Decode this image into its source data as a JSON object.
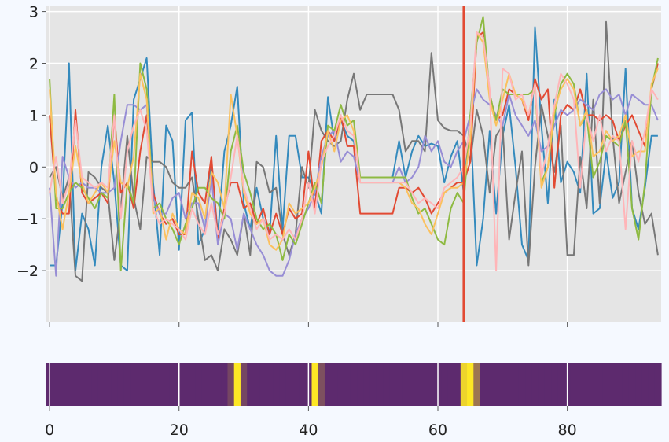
{
  "chart_data": [
    {
      "type": "line",
      "title": "",
      "xlabel": "",
      "ylabel": "",
      "xlim": [
        -0.5,
        94.5
      ],
      "ylim": [
        -3,
        3.1
      ],
      "xticks": [
        0,
        20,
        40,
        60,
        80
      ],
      "yticks": [
        3,
        2,
        1,
        0,
        -1,
        -2
      ],
      "ytick_labels": [
        "3",
        "2",
        "1",
        "0",
        "−1",
        "−2"
      ],
      "grid": true,
      "background": "#e5e5e5",
      "vline": {
        "x": 64,
        "color": "#e24a33"
      },
      "series": [
        {
          "color": "#348abd",
          "values": [
            -1.9,
            -1.9,
            -0.7,
            2.0,
            -2.0,
            -0.9,
            -1.2,
            -1.9,
            0.0,
            0.8,
            -0.3,
            -1.9,
            -2.0,
            1.3,
            1.7,
            2.1,
            -0.3,
            -1.7,
            0.8,
            0.5,
            -1.6,
            0.9,
            1.05,
            -1.5,
            -1.2,
            0.1,
            -1.3,
            0.3,
            0.8,
            1.55,
            -0.7,
            -1.2,
            -0.4,
            -1.0,
            -1.3,
            0.6,
            -1.2,
            0.6,
            0.6,
            -0.2,
            -0.2,
            -0.5,
            -0.9,
            1.35,
            0.5,
            0.9,
            0.6,
            0.5,
            -0.2,
            -0.2,
            -0.2,
            -0.2,
            -0.2,
            -0.2,
            0.5,
            -0.2,
            0.3,
            0.6,
            0.4,
            0.45,
            0.4,
            -0.3,
            0.2,
            0.5,
            -0.5,
            1.0,
            -1.9,
            -1.0,
            0.7,
            -0.9,
            0.6,
            1.2,
            0.0,
            -1.5,
            -1.8,
            2.7,
            0.8,
            -0.7,
            1.3,
            -0.3,
            0.1,
            -0.1,
            -0.5,
            1.8,
            -0.9,
            -0.8,
            0.3,
            -0.6,
            -0.3,
            1.9,
            -0.8,
            -1.2,
            -0.4,
            0.6,
            0.6
          ]
        },
        {
          "color": "#777777",
          "values": [
            -0.2,
            0.0,
            -0.6,
            -0.2,
            -2.1,
            -2.2,
            -0.1,
            -0.2,
            -0.4,
            -0.5,
            -1.8,
            -0.8,
            0.6,
            -0.6,
            -1.2,
            0.2,
            0.1,
            0.1,
            0.0,
            -0.3,
            -0.4,
            -0.4,
            -0.2,
            -1.0,
            -1.8,
            -1.7,
            -2.0,
            -1.2,
            -1.4,
            -1.7,
            -0.9,
            -1.7,
            0.1,
            0.0,
            -0.5,
            -0.4,
            -1.3,
            -1.7,
            -1.3,
            0.0,
            -0.4,
            1.1,
            0.7,
            0.5,
            0.4,
            0.5,
            1.3,
            1.8,
            1.1,
            1.4,
            1.4,
            1.4,
            1.4,
            1.4,
            1.1,
            0.3,
            0.5,
            0.5,
            0.3,
            2.2,
            0.9,
            0.75,
            0.7,
            0.7,
            0.6,
            0.1,
            1.1,
            0.6,
            -0.5,
            0.6,
            0.8,
            -1.4,
            -0.5,
            0.3,
            -1.9,
            0.0,
            1.2,
            0.6,
            -0.1,
            0.8,
            -1.7,
            -1.7,
            0.2,
            -0.8,
            1.3,
            -0.7,
            2.8,
            0.6,
            -0.7,
            -0.1,
            0.5,
            -0.5,
            -1.1,
            -0.9,
            -1.7
          ]
        },
        {
          "color": "#e24a33",
          "values": [
            1.0,
            -0.6,
            -0.9,
            -0.9,
            1.1,
            -0.5,
            -0.7,
            -0.6,
            -0.5,
            -0.7,
            1.0,
            -0.5,
            -0.3,
            -0.8,
            0.3,
            1.0,
            -0.5,
            -0.9,
            -1.1,
            -1.0,
            -1.3,
            -1.3,
            0.3,
            -0.5,
            -0.7,
            0.2,
            -1.4,
            -0.8,
            -0.3,
            -0.3,
            -0.8,
            -0.7,
            -1.1,
            -0.8,
            -1.3,
            -0.9,
            -1.3,
            -0.8,
            -1.0,
            -0.9,
            0.3,
            -0.8,
            0.5,
            0.7,
            0.5,
            1.0,
            0.4,
            0.4,
            -0.9,
            -0.9,
            -0.9,
            -0.9,
            -0.9,
            -0.9,
            -0.4,
            -0.4,
            -0.5,
            -0.4,
            -0.6,
            -0.9,
            -0.7,
            -0.5,
            -0.4,
            -0.3,
            -0.3,
            0.1,
            2.5,
            2.6,
            1.4,
            0.9,
            1.0,
            1.5,
            1.4,
            1.3,
            0.9,
            1.7,
            1.3,
            1.5,
            -0.4,
            1.0,
            1.2,
            1.1,
            1.5,
            1.0,
            1.0,
            0.9,
            1.0,
            0.9,
            0.5,
            0.8,
            1.0,
            0.7,
            0.4,
            1.5,
            2.0
          ]
        },
        {
          "color": "#988ed5",
          "values": [
            -0.4,
            -2.1,
            0.2,
            -0.2,
            -0.4,
            -0.3,
            -0.4,
            -0.4,
            -0.5,
            -0.5,
            -0.4,
            0.5,
            1.2,
            1.2,
            1.1,
            1.2,
            -0.6,
            -0.9,
            -0.9,
            -0.6,
            -0.5,
            -1.0,
            -0.7,
            -0.7,
            -1.2,
            -0.2,
            -1.5,
            -0.9,
            -1.0,
            -1.6,
            -0.9,
            -1.2,
            -1.5,
            -1.7,
            -2.0,
            -2.1,
            -2.1,
            -1.8,
            -1.3,
            -1.0,
            -0.8,
            -0.5,
            0.2,
            0.6,
            0.7,
            0.1,
            0.3,
            0.2,
            -0.3,
            -0.3,
            -0.3,
            -0.3,
            -0.3,
            -0.3,
            0.0,
            -0.3,
            -0.2,
            0.0,
            0.6,
            0.3,
            0.5,
            0.1,
            0.0,
            0.3,
            0.5,
            1.0,
            1.5,
            1.3,
            1.2,
            1.0,
            0.8,
            1.4,
            1.0,
            0.8,
            0.6,
            0.9,
            0.3,
            0.4,
            0.8,
            1.1,
            1.0,
            1.1,
            1.3,
            1.2,
            1.1,
            1.4,
            1.5,
            1.3,
            1.4,
            1.0,
            1.4,
            1.3,
            1.2,
            1.2,
            0.9
          ]
        },
        {
          "color": "#8eba42",
          "values": [
            1.7,
            -0.8,
            -0.8,
            -0.5,
            -0.3,
            -0.4,
            -0.6,
            -0.8,
            -0.5,
            -0.6,
            1.4,
            -2.0,
            -0.3,
            -0.7,
            2.0,
            1.5,
            -0.8,
            -0.7,
            -1.0,
            -1.2,
            -1.5,
            -1.1,
            -0.8,
            -0.4,
            -0.4,
            -0.6,
            -0.7,
            -1.0,
            0.3,
            0.8,
            -0.1,
            -0.5,
            -1.0,
            -1.2,
            -1.1,
            -1.3,
            -1.8,
            -1.3,
            -1.5,
            -1.1,
            -0.7,
            -0.3,
            -0.7,
            0.8,
            0.7,
            1.2,
            0.8,
            0.9,
            -0.2,
            -0.2,
            -0.2,
            -0.2,
            -0.2,
            -0.2,
            -0.2,
            -0.2,
            -0.6,
            -0.9,
            -0.8,
            -1.1,
            -1.4,
            -1.5,
            -0.8,
            -0.5,
            -0.7,
            1.0,
            2.4,
            2.9,
            1.4,
            0.9,
            1.5,
            1.4,
            1.4,
            1.4,
            1.4,
            1.5,
            -0.3,
            0.0,
            1.0,
            1.6,
            1.8,
            1.6,
            0.8,
            1.0,
            -0.2,
            0.1,
            0.6,
            0.5,
            0.4,
            0.9,
            -0.8,
            -1.4,
            -0.3,
            1.5,
            2.1
          ]
        },
        {
          "color": "#fbc15e",
          "values": [
            1.5,
            -0.5,
            -1.2,
            -0.5,
            0.4,
            -0.3,
            -0.7,
            -0.5,
            -0.3,
            -0.5,
            0.5,
            -0.3,
            -0.4,
            0.2,
            1.8,
            1.3,
            -0.9,
            -0.8,
            -1.4,
            -0.9,
            -1.2,
            -1.3,
            -0.5,
            -0.6,
            -1.0,
            -0.1,
            -0.3,
            -0.8,
            1.4,
            0.6,
            -0.5,
            -0.9,
            -1.1,
            -1.0,
            -1.5,
            -1.6,
            -1.4,
            -0.7,
            -0.9,
            -0.8,
            -0.7,
            -0.4,
            0.0,
            0.7,
            0.3,
            0.9,
            1.0,
            0.7,
            -0.3,
            -0.3,
            -0.3,
            -0.3,
            -0.3,
            -0.3,
            -0.3,
            -0.4,
            -0.7,
            -0.8,
            -1.1,
            -1.3,
            -0.9,
            -0.5,
            -0.4,
            -0.4,
            -0.3,
            0.5,
            2.6,
            2.4,
            1.3,
            0.8,
            1.3,
            1.8,
            1.4,
            1.3,
            1.0,
            1.6,
            -0.4,
            0.0,
            1.1,
            1.5,
            1.7,
            1.5,
            0.8,
            1.1,
            0.2,
            0.3,
            0.7,
            0.5,
            0.6,
            1.0,
            0.2,
            0.3,
            0.3,
            1.6,
            1.9
          ]
        },
        {
          "color": "#ffb5b8",
          "values": [
            -0.5,
            0.2,
            -0.7,
            -0.3,
            0.9,
            -0.2,
            -0.3,
            -0.4,
            -0.3,
            -0.4,
            1.0,
            -1.0,
            0.3,
            0.8,
            1.1,
            0.7,
            -0.8,
            -1.1,
            -1.0,
            -1.1,
            -1.2,
            -1.4,
            -0.8,
            -1.1,
            -1.3,
            -0.7,
            -1.3,
            -0.9,
            -0.2,
            0.6,
            -0.4,
            -0.8,
            -1.2,
            -1.0,
            -1.4,
            -1.3,
            -1.4,
            -1.2,
            -1.4,
            -1.0,
            -0.3,
            -0.9,
            0.1,
            0.4,
            0.6,
            1.0,
            0.7,
            0.6,
            -0.3,
            -0.3,
            -0.3,
            -0.3,
            -0.3,
            -0.3,
            -0.3,
            -0.3,
            -0.5,
            -0.7,
            -0.6,
            -0.7,
            -0.8,
            -0.4,
            -0.3,
            -0.2,
            0.0,
            0.8,
            2.6,
            2.5,
            1.5,
            -2.0,
            1.9,
            1.8,
            1.3,
            1.4,
            1.0,
            1.6,
            -0.2,
            0.4,
            1.2,
            1.8,
            1.6,
            1.3,
            -0.4,
            1.0,
            0.5,
            1.0,
            0.3,
            0.6,
            0.5,
            -1.2,
            0.5,
            0.1,
            0.7,
            1.5,
            1.3
          ]
        }
      ]
    },
    {
      "type": "heatmap",
      "title": "",
      "xlabel": "",
      "ylabel": "",
      "xlim": [
        -0.5,
        94.5
      ],
      "xticks": [
        0,
        20,
        40,
        60,
        80
      ],
      "xtick_labels": [
        "0",
        "20",
        "40",
        "60",
        "80"
      ],
      "colormap": {
        "low": "#5d2a6e",
        "high": "#fde725"
      },
      "values": [
        0,
        0,
        0,
        0,
        0,
        0,
        0,
        0,
        0,
        0,
        0,
        0,
        0,
        0,
        0,
        0,
        0,
        0,
        0,
        0,
        0,
        0,
        0,
        0,
        0,
        0,
        0,
        0,
        0.15,
        1,
        0.15,
        0,
        0,
        0,
        0,
        0,
        0,
        0,
        0,
        0,
        0,
        1,
        0.2,
        0,
        0,
        0,
        0,
        0,
        0,
        0,
        0,
        0,
        0,
        0,
        0,
        0,
        0,
        0,
        0,
        0,
        0,
        0,
        0,
        0,
        0.9,
        1,
        0.4,
        0,
        0,
        0,
        0,
        0,
        0,
        0,
        0,
        0,
        0,
        0,
        0,
        0,
        0,
        0,
        0,
        0,
        0,
        0,
        0,
        0,
        0,
        0,
        0,
        0,
        0,
        0,
        0
      ]
    }
  ]
}
